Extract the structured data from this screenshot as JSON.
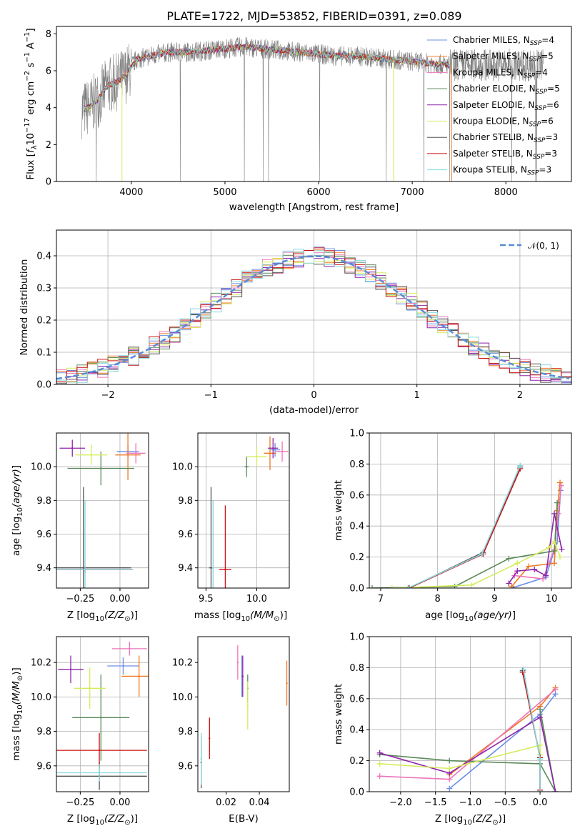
{
  "colors": [
    "#6b8fe6",
    "#f07822",
    "#ec74b8",
    "#5a8a5a",
    "#8e24aa",
    "#d4ec5c",
    "#555555",
    "#cc1111",
    "#86d8e0"
  ],
  "chart_data": [
    {
      "id": "spectrum",
      "type": "line",
      "title": "PLATE=1722, MJD=53852, FIBERID=0391, z=0.089",
      "xlabel": "wavelength [Angstrom, rest frame]",
      "ylabel": "Flux [f_λ 10^-17 erg cm^-2 s^-1 A^-1]",
      "xlim": [
        3200,
        8700
      ],
      "ylim": [
        0,
        8.4
      ],
      "xticks": [
        4000,
        5000,
        6000,
        7000,
        8000
      ],
      "yticks": [
        0,
        2,
        4,
        6,
        8
      ],
      "grid": false,
      "legend_position": "right",
      "data_color": "#808080",
      "continuum": {
        "x": [
          3470,
          3550,
          3650,
          3750,
          3850,
          3950,
          4050,
          4200,
          4400,
          4600,
          4800,
          5000,
          5200,
          5400,
          5600,
          5800,
          6000,
          6200,
          6400,
          6600,
          6800,
          7000,
          7200,
          7400
        ],
        "y": [
          3.9,
          4.0,
          4.5,
          5.2,
          5.4,
          5.8,
          6.6,
          6.8,
          7.0,
          7.0,
          7.1,
          7.2,
          7.3,
          7.2,
          7.1,
          7.0,
          6.9,
          6.8,
          6.8,
          6.7,
          6.6,
          6.5,
          6.4,
          6.3
        ]
      },
      "series": [
        {
          "name": "Chabrier MILES, N_SSP=4",
          "nssp": "4",
          "label": "Chabrier MILES"
        },
        {
          "name": "Salpeter MILES, N_SSP=5",
          "nssp": "5",
          "label": "Salpeter MILES"
        },
        {
          "name": "Kroupa MILES, N_SSP=4",
          "nssp": "4",
          "label": "Kroupa MILES"
        },
        {
          "name": "Chabrier ELODIE, N_SSP=5",
          "nssp": "5",
          "label": "Chabrier ELODIE"
        },
        {
          "name": "Salpeter ELODIE, N_SSP=6",
          "nssp": "6",
          "label": "Salpeter ELODIE"
        },
        {
          "name": "Kroupa ELODIE, N_SSP=6",
          "nssp": "6",
          "label": "Kroupa ELODIE"
        },
        {
          "name": "Chabrier STELIB, N_SSP=3",
          "nssp": "3",
          "label": "Chabrier STELIB"
        },
        {
          "name": "Salpeter STELIB, N_SSP=3",
          "nssp": "3",
          "label": "Salpeter STELIB"
        },
        {
          "name": "Kroupa STELIB, N_SSP=3",
          "nssp": "3",
          "label": "Kroupa STELIB"
        }
      ]
    },
    {
      "id": "residuals",
      "type": "line",
      "xlabel": "(data-model)/error",
      "ylabel": "Normed distribution",
      "xlim": [
        -2.5,
        2.5
      ],
      "ylim": [
        0,
        0.48
      ],
      "xticks": [
        -2,
        -1,
        0,
        1,
        2
      ],
      "yticks": [
        0.0,
        0.1,
        0.2,
        0.3,
        0.4
      ],
      "grid": true,
      "legend_position": "top-right",
      "legend_label": "𝒩(0, 1)",
      "bin_width": 0.1,
      "reference_color": "#5a8bd4"
    },
    {
      "id": "age-vs-Z",
      "type": "scatter",
      "xlabel": "Z [log10(Z/Z⊙)]",
      "ylabel": "age  [log10(age/yr)]",
      "xlim": [
        -0.4,
        0.18
      ],
      "ylim": [
        9.28,
        10.2
      ],
      "xticks": [
        -0.25,
        0.0
      ],
      "yticks": [
        9.4,
        9.6,
        9.8,
        10.0
      ],
      "grid": true,
      "points": [
        {
          "s": 0,
          "x": 0.05,
          "y": 10.09,
          "xe": 0.07,
          "ye": 0.04
        },
        {
          "s": 1,
          "x": 0.05,
          "y": 10.07,
          "xe": 0.08,
          "ye": 0.15
        },
        {
          "s": 2,
          "x": 0.1,
          "y": 10.08,
          "xe": 0.06,
          "ye": 0.06
        },
        {
          "s": 3,
          "x": -0.12,
          "y": 9.99,
          "xe": 0.21,
          "ye": 0.1
        },
        {
          "s": 4,
          "x": -0.3,
          "y": 10.11,
          "xe": 0.08,
          "ye": 0.05
        },
        {
          "s": 5,
          "x": -0.18,
          "y": 10.07,
          "xe": 0.1,
          "ye": 0.06
        },
        {
          "s": 6,
          "x": -0.23,
          "y": 9.4,
          "xe": 0.3,
          "ye": 0.48
        },
        {
          "s": 7,
          "x": -0.22,
          "y": 9.39,
          "xe": 0.3,
          "ye": 0.02
        },
        {
          "s": 8,
          "x": -0.22,
          "y": 9.39,
          "xe": 0.3,
          "ye": 0.41
        }
      ]
    },
    {
      "id": "age-vs-mass",
      "type": "scatter",
      "xlabel": "mass [log10(M/M⊙)]",
      "ylabel": "",
      "xlim": [
        9.42,
        10.32
      ],
      "ylim": [
        9.28,
        10.2
      ],
      "xticks": [
        9.5,
        10.0
      ],
      "yticks": [
        9.4,
        9.6,
        9.8,
        10.0
      ],
      "grid": true,
      "points": [
        {
          "s": 0,
          "x": 10.18,
          "y": 10.1,
          "xe": 0.05,
          "ye": 0.04
        },
        {
          "s": 1,
          "x": 10.13,
          "y": 10.08,
          "xe": 0.06,
          "ye": 0.1
        },
        {
          "s": 2,
          "x": 10.25,
          "y": 10.09,
          "xe": 0.06,
          "ye": 0.06
        },
        {
          "s": 3,
          "x": 9.9,
          "y": 10.0,
          "xe": 0.02,
          "ye": 0.06
        },
        {
          "s": 4,
          "x": 10.16,
          "y": 10.11,
          "xe": 0.05,
          "ye": 0.06
        },
        {
          "s": 5,
          "x": 10.0,
          "y": 10.06,
          "xe": 0.1,
          "ye": 0.06
        },
        {
          "s": 6,
          "x": 9.55,
          "y": 9.4,
          "xe": 0.02,
          "ye": 0.48
        },
        {
          "s": 7,
          "x": 9.69,
          "y": 9.39,
          "xe": 0.06,
          "ye": 0.38
        },
        {
          "s": 8,
          "x": 9.57,
          "y": 9.4,
          "xe": 0.01,
          "ye": 0.4
        }
      ]
    },
    {
      "id": "mass-weight-vs-age",
      "type": "line",
      "xlabel": "age  [log10(age/yr)]",
      "ylabel": "mass weight",
      "xlim": [
        6.8,
        10.35
      ],
      "ylim": [
        0.0,
        1.0
      ],
      "xticks": [
        7,
        8,
        9,
        10
      ],
      "yticks": [
        0.0,
        0.2,
        0.4,
        0.6,
        0.8,
        1.0
      ],
      "grid": true,
      "series": [
        {
          "s": 0,
          "x": [
            9.3,
            9.9,
            10.1,
            10.16
          ],
          "y": [
            0.0,
            0.07,
            0.3,
            0.63
          ]
        },
        {
          "s": 1,
          "x": [
            9.3,
            9.6,
            10.05,
            10.1,
            10.15
          ],
          "y": [
            0.01,
            0.14,
            0.16,
            0.5,
            0.68
          ]
        },
        {
          "s": 2,
          "x": [
            9.35,
            9.85,
            10.05,
            10.12,
            10.17
          ],
          "y": [
            0.08,
            0.06,
            0.25,
            0.48,
            0.66
          ]
        },
        {
          "s": 3,
          "x": [
            6.85,
            8.3,
            9.25,
            10.05,
            10.1
          ],
          "y": [
            0.0,
            0.01,
            0.19,
            0.24,
            0.55
          ]
        },
        {
          "s": 4,
          "x": [
            9.25,
            9.4,
            9.7,
            9.9,
            10.05,
            10.18
          ],
          "y": [
            0.03,
            0.11,
            0.12,
            0.08,
            0.48,
            0.25
          ]
        },
        {
          "s": 5,
          "x": [
            7.2,
            8.6,
            9.4,
            9.95,
            10.05,
            10.15
          ],
          "y": [
            0.0,
            0.02,
            0.16,
            0.26,
            0.3,
            0.2
          ]
        },
        {
          "s": 6,
          "x": [
            7.5,
            8.8,
            9.45
          ],
          "y": [
            0.0,
            0.23,
            0.78
          ]
        },
        {
          "s": 7,
          "x": [
            7.5,
            8.8,
            9.45
          ],
          "y": [
            0.0,
            0.22,
            0.77
          ]
        },
        {
          "s": 8,
          "x": [
            7.48,
            8.78,
            9.45
          ],
          "y": [
            0.0,
            0.22,
            0.79
          ]
        }
      ]
    },
    {
      "id": "mass-vs-Z",
      "type": "scatter",
      "xlabel": "Z [log10(Z/Z⊙)]",
      "ylabel": "mass [log10(M/M⊙)]",
      "xlim": [
        -0.4,
        0.18
      ],
      "ylim": [
        9.45,
        10.35
      ],
      "xticks": [
        -0.25,
        0.0
      ],
      "yticks": [
        9.6,
        9.8,
        10.0,
        10.2
      ],
      "grid": true,
      "points": [
        {
          "s": 0,
          "x": 0.02,
          "y": 10.18,
          "xe": 0.1,
          "ye": 0.05
        },
        {
          "s": 1,
          "x": 0.12,
          "y": 10.12,
          "xe": 0.11,
          "ye": 0.12
        },
        {
          "s": 2,
          "x": 0.06,
          "y": 10.28,
          "xe": 0.11,
          "ye": 0.04
        },
        {
          "s": 3,
          "x": -0.12,
          "y": 9.88,
          "xe": 0.18,
          "ye": 0.25
        },
        {
          "s": 4,
          "x": -0.31,
          "y": 10.16,
          "xe": 0.08,
          "ye": 0.08
        },
        {
          "s": 5,
          "x": -0.19,
          "y": 10.05,
          "xe": 0.1,
          "ye": 0.12
        },
        {
          "s": 6,
          "x": -0.13,
          "y": 9.54,
          "xe": 0.3,
          "ye": 0.08
        },
        {
          "s": 7,
          "x": -0.13,
          "y": 9.69,
          "xe": 0.3,
          "ye": 0.1
        },
        {
          "s": 8,
          "x": -0.13,
          "y": 9.56,
          "xe": 0.3,
          "ye": 0.05
        }
      ]
    },
    {
      "id": "mass-vs-ebv",
      "type": "scatter",
      "xlabel": "E(B-V)",
      "ylabel": "",
      "xlim": [
        0.003,
        0.058
      ],
      "ylim": [
        9.45,
        10.35
      ],
      "xticks": [
        0.02,
        0.04
      ],
      "yticks": [
        9.6,
        9.8,
        10.0,
        10.2
      ],
      "grid": false,
      "points": [
        {
          "s": 0,
          "x": 0.0295,
          "y": 10.12,
          "xe": 0,
          "ye": 0.12
        },
        {
          "s": 1,
          "x": 0.0565,
          "y": 10.08,
          "xe": 0,
          "ye": 0.13
        },
        {
          "s": 2,
          "x": 0.027,
          "y": 10.2,
          "xe": 0,
          "ye": 0.1
        },
        {
          "s": 3,
          "x": 0.033,
          "y": 10.05,
          "xe": 0,
          "ye": 0.08
        },
        {
          "s": 4,
          "x": 0.03,
          "y": 10.12,
          "xe": 0,
          "ye": 0.12
        },
        {
          "s": 5,
          "x": 0.033,
          "y": 9.95,
          "xe": 0,
          "ye": 0.14
        },
        {
          "s": 6,
          "x": 0.005,
          "y": 9.62,
          "xe": 0,
          "ye": 0.15
        },
        {
          "s": 7,
          "x": 0.01,
          "y": 9.76,
          "xe": 0,
          "ye": 0.12
        },
        {
          "s": 8,
          "x": 0.005,
          "y": 9.64,
          "xe": 0,
          "ye": 0.15
        }
      ]
    },
    {
      "id": "mass-weight-vs-Z",
      "type": "line",
      "xlabel": "Z [log10(Z/Z⊙)]",
      "ylabel": "mass weight",
      "xlim": [
        -2.45,
        0.45
      ],
      "ylim": [
        0.0,
        1.0
      ],
      "xticks": [
        -2.0,
        -1.5,
        -1.0,
        -0.5,
        0.0
      ],
      "yticks": [
        0.0,
        0.2,
        0.4,
        0.6,
        0.8,
        1.0
      ],
      "grid": true,
      "series": [
        {
          "s": 0,
          "x": [
            -1.3,
            0.0,
            0.22
          ],
          "y": [
            0.02,
            0.5,
            0.63
          ]
        },
        {
          "s": 1,
          "x": [
            -1.3,
            0.0,
            0.22
          ],
          "y": [
            0.11,
            0.55,
            0.67
          ]
        },
        {
          "s": 2,
          "x": [
            -2.3,
            -1.3,
            0.22
          ],
          "y": [
            0.1,
            0.08,
            0.66
          ]
        },
        {
          "s": 3,
          "x": [
            -2.3,
            -1.3,
            0.0,
            0.22,
            -0.0
          ],
          "y": [
            0.24,
            0.2,
            0.18,
            0.0,
            0.53
          ]
        },
        {
          "s": 4,
          "x": [
            -2.3,
            -1.3,
            0.0,
            0.22
          ],
          "y": [
            0.25,
            0.12,
            0.48,
            0.0
          ]
        },
        {
          "s": 5,
          "x": [
            -2.3,
            -1.3,
            0.0,
            -0.0
          ],
          "y": [
            0.18,
            0.15,
            0.3,
            0.24
          ]
        },
        {
          "s": 6,
          "x": [
            -0.25,
            0.0,
            0.0
          ],
          "y": [
            0.78,
            0.22,
            0.0
          ]
        },
        {
          "s": 7,
          "x": [
            -0.25,
            0.0,
            0.0
          ],
          "y": [
            0.77,
            0.22,
            0.01
          ]
        },
        {
          "s": 8,
          "x": [
            -0.24,
            0.0,
            0.0
          ],
          "y": [
            0.79,
            0.21,
            0.0
          ]
        }
      ]
    }
  ]
}
